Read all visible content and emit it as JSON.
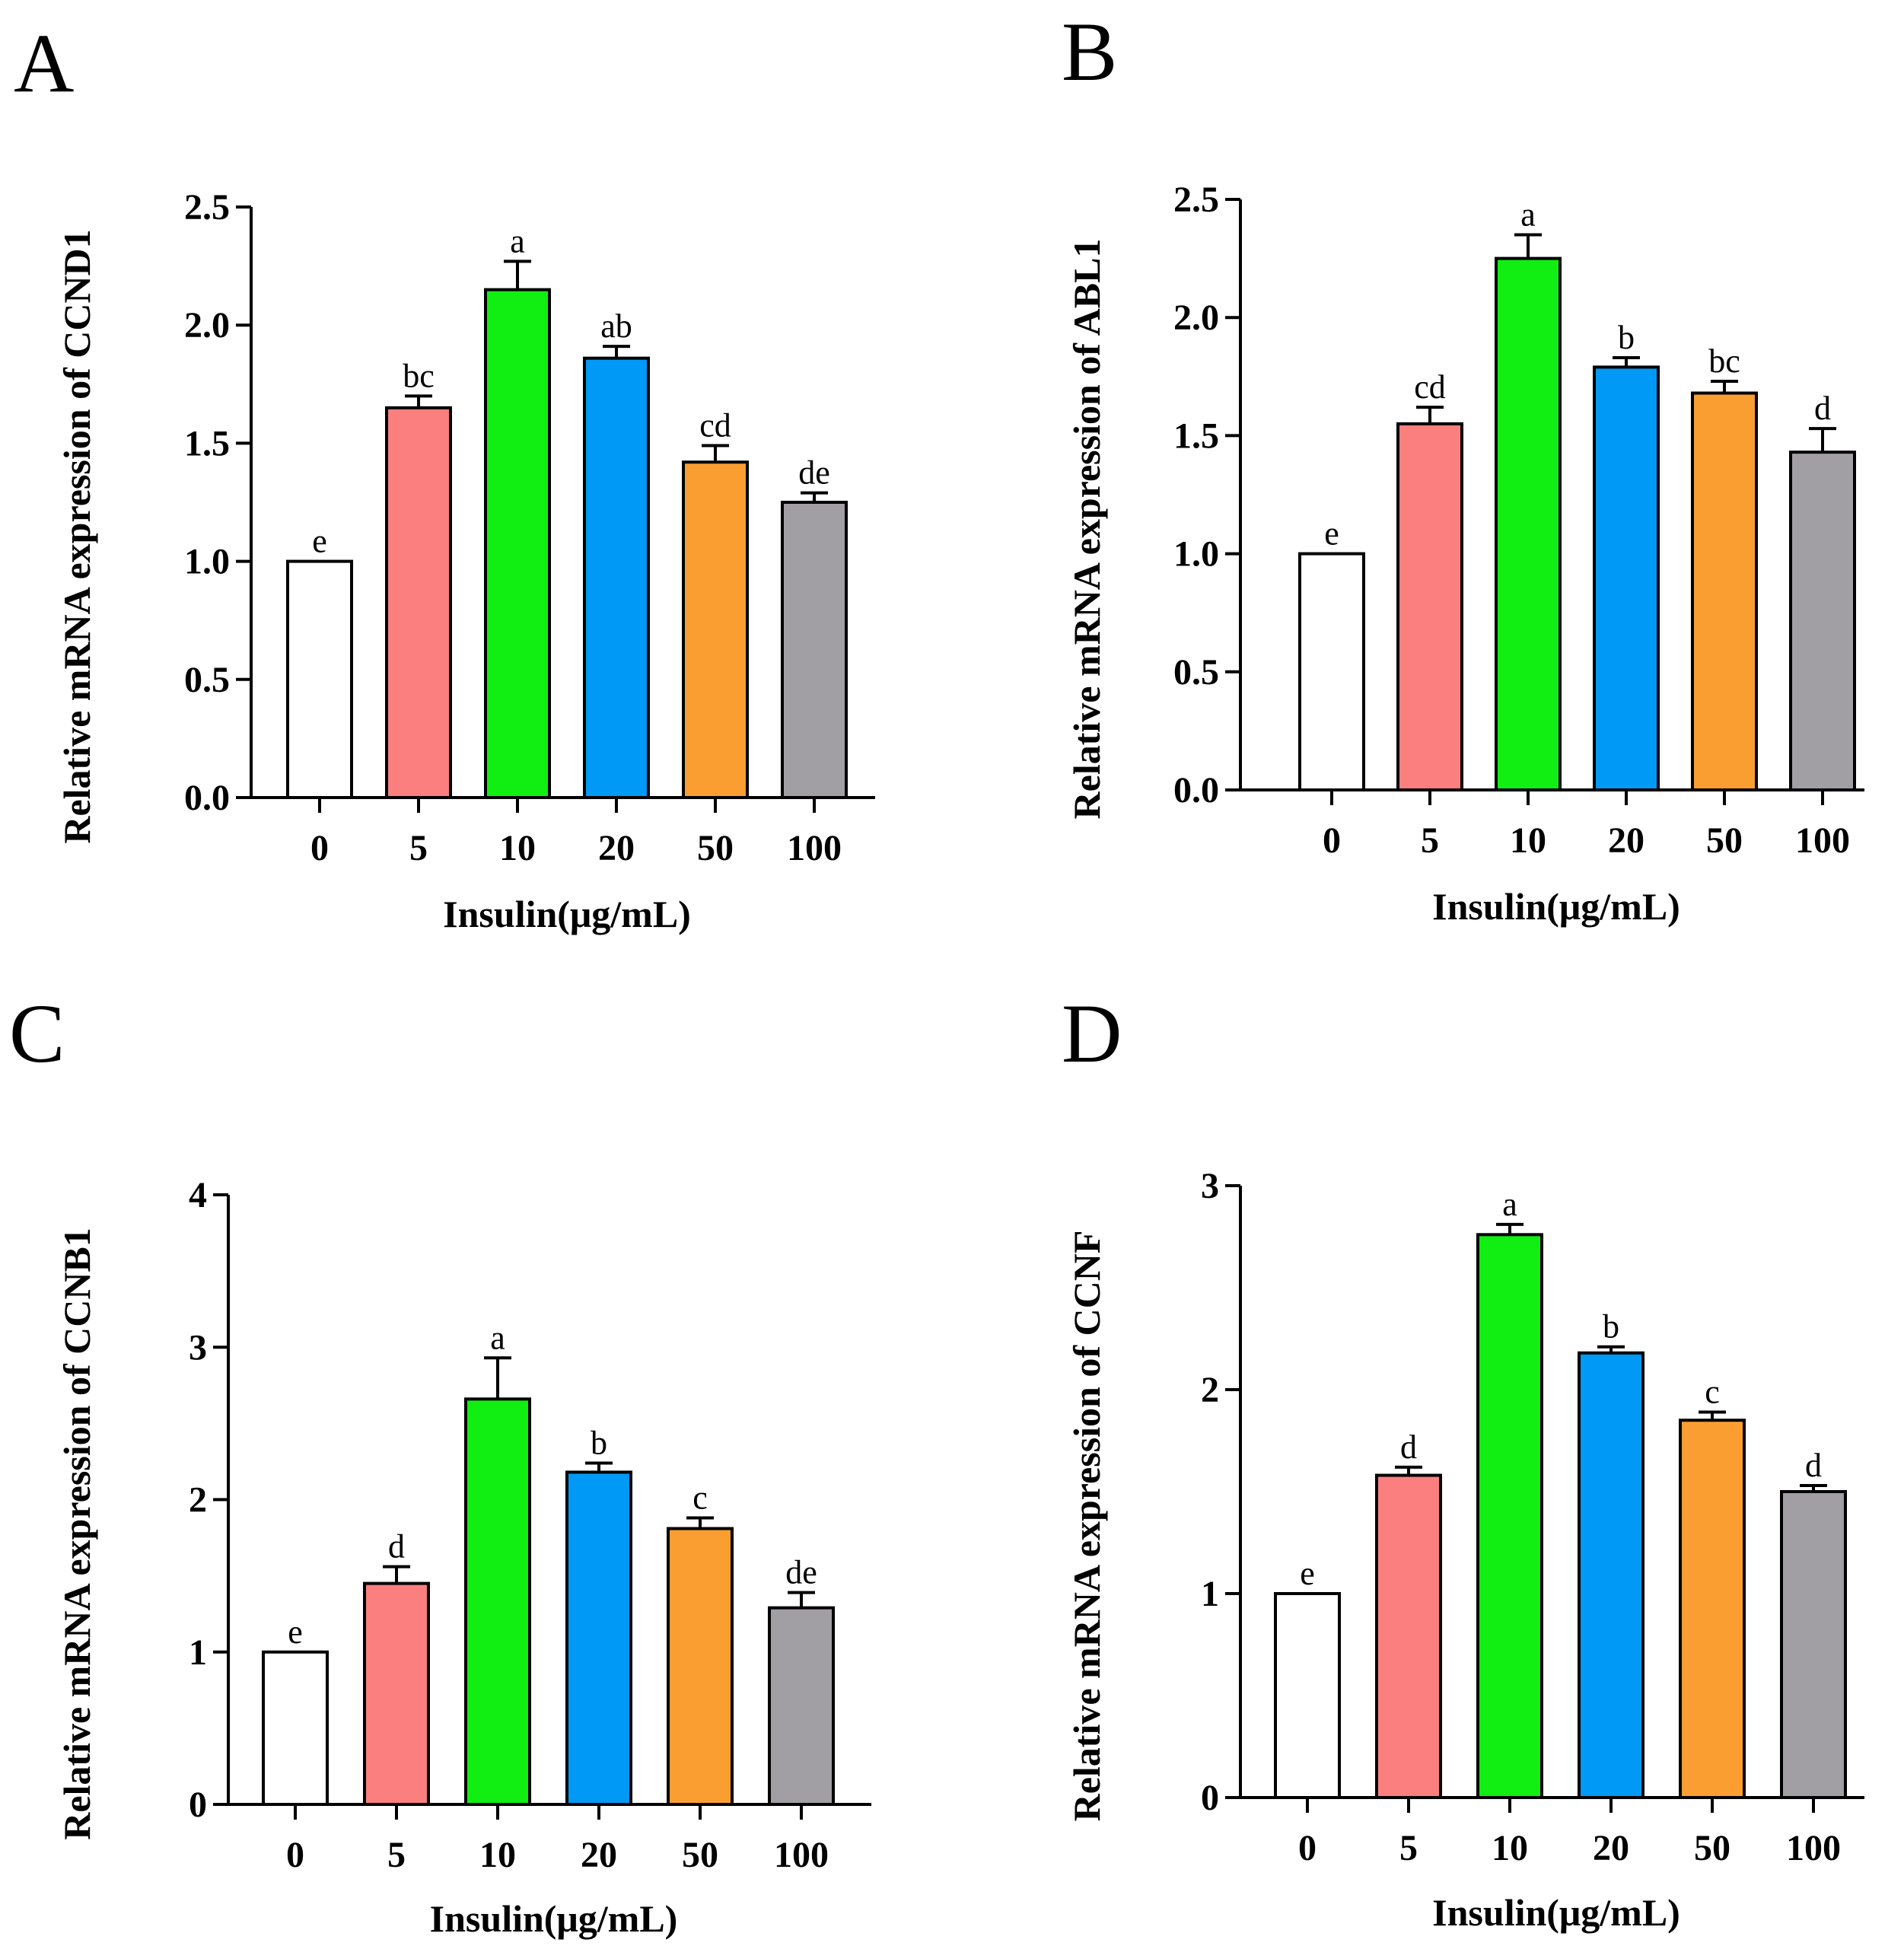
{
  "colors": {
    "bar_fills": [
      "#ffffff",
      "#fb7f7f",
      "#11ee11",
      "#0099f5",
      "#fb9e32",
      "#a19fa4"
    ],
    "stroke": "#000000"
  },
  "chart_data": [
    {
      "panel": "A",
      "type": "bar",
      "categories": [
        "0",
        "5",
        "10",
        "20",
        "50",
        "100"
      ],
      "values": [
        1.0,
        1.65,
        2.15,
        1.86,
        1.42,
        1.25
      ],
      "errors": [
        0.0,
        0.05,
        0.12,
        0.05,
        0.07,
        0.04
      ],
      "labels": [
        "e",
        "bc",
        "a",
        "ab",
        "cd",
        "de"
      ],
      "xlabel": "Insulin(μg/mL)",
      "ylabel": "Relative mRNA expression of CCND1",
      "ylim": [
        0,
        2.5
      ],
      "yticks": [
        "0.0",
        "0.5",
        "1.0",
        "1.5",
        "2.0",
        "2.5"
      ]
    },
    {
      "panel": "B",
      "type": "bar",
      "categories": [
        "0",
        "5",
        "10",
        "20",
        "50",
        "100"
      ],
      "values": [
        1.0,
        1.55,
        2.25,
        1.79,
        1.68,
        1.43
      ],
      "errors": [
        0.0,
        0.07,
        0.1,
        0.04,
        0.05,
        0.1
      ],
      "labels": [
        "e",
        "cd",
        "a",
        "b",
        "bc",
        "d"
      ],
      "xlabel": "Insulin(μg/mL)",
      "ylabel": "Relative mRNA expression of ABL1",
      "ylim": [
        0,
        2.5
      ],
      "yticks": [
        "0.0",
        "0.5",
        "1.0",
        "1.5",
        "2.0",
        "2.5"
      ]
    },
    {
      "panel": "C",
      "type": "bar",
      "categories": [
        "0",
        "5",
        "10",
        "20",
        "50",
        "100"
      ],
      "values": [
        1.0,
        1.45,
        2.66,
        2.18,
        1.81,
        1.29
      ],
      "errors": [
        0.0,
        0.11,
        0.27,
        0.06,
        0.07,
        0.1
      ],
      "labels": [
        "e",
        "d",
        "a",
        "b",
        "c",
        "de"
      ],
      "xlabel": "Insulin(μg/mL)",
      "ylabel": "Relative mRNA expression of CCNB1",
      "ylim": [
        0,
        4
      ],
      "yticks": [
        "0",
        "1",
        "2",
        "3",
        "4"
      ]
    },
    {
      "panel": "D",
      "type": "bar",
      "categories": [
        "0",
        "5",
        "10",
        "20",
        "50",
        "100"
      ],
      "values": [
        1.0,
        1.58,
        2.76,
        2.18,
        1.85,
        1.5
      ],
      "errors": [
        0.0,
        0.04,
        0.05,
        0.03,
        0.04,
        0.03
      ],
      "labels": [
        "e",
        "d",
        "a",
        "b",
        "c",
        "d"
      ],
      "xlabel": "Insulin(μg/mL)",
      "ylabel": "Relative mRNA expression of CCNF",
      "ylim": [
        0,
        3
      ],
      "yticks": [
        "0",
        "1",
        "2",
        "3"
      ]
    }
  ]
}
